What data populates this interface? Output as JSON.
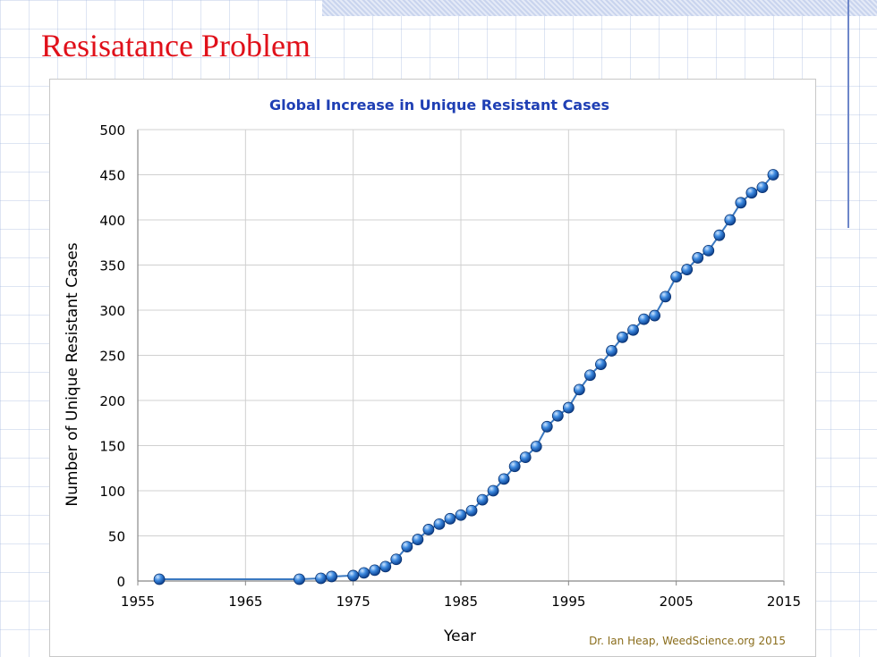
{
  "slide": {
    "title": "Resisatance Problem"
  },
  "chart_data": {
    "type": "line",
    "title": "Global Increase in Unique Resistant Cases",
    "xlabel": "Year",
    "ylabel": "Number of Unique Resistant Cases",
    "xlim": [
      1955,
      2015
    ],
    "ylim": [
      0,
      500
    ],
    "x_ticks": [
      "1955",
      "1965",
      "1975",
      "1985",
      "1995",
      "2005",
      "2015"
    ],
    "y_ticks": [
      "0",
      "50",
      "100",
      "150",
      "200",
      "250",
      "300",
      "350",
      "400",
      "450",
      "500"
    ],
    "grid": true,
    "legend": "none",
    "annotation": "Dr. Ian Heap, WeedScience.org 2015",
    "series": [
      {
        "x": [
          1957,
          1970,
          1972,
          1973,
          1975,
          1976,
          1977,
          1978,
          1979,
          1980,
          1981,
          1982,
          1983,
          1984,
          1985,
          1986,
          1987,
          1988,
          1989,
          1990,
          1991,
          1992,
          1993,
          1994,
          1995,
          1996,
          1997,
          1998,
          1999,
          2000,
          2001,
          2002,
          2003,
          2004,
          2005,
          2006,
          2007,
          2008,
          2009,
          2010,
          2011,
          2012,
          2013,
          2014
        ],
        "y": [
          2,
          2,
          3,
          5,
          6,
          9,
          12,
          16,
          24,
          38,
          46,
          57,
          63,
          69,
          73,
          78,
          90,
          100,
          113,
          127,
          137,
          149,
          171,
          183,
          192,
          212,
          228,
          240,
          255,
          270,
          278,
          290,
          294,
          315,
          337,
          345,
          358,
          366,
          383,
          400,
          419,
          430,
          436,
          450
        ]
      }
    ],
    "colors": {
      "line": "#3a78c0",
      "marker": "#1a5fb8",
      "title": "#1f3fb4",
      "grid": "#d0d0d0"
    }
  }
}
